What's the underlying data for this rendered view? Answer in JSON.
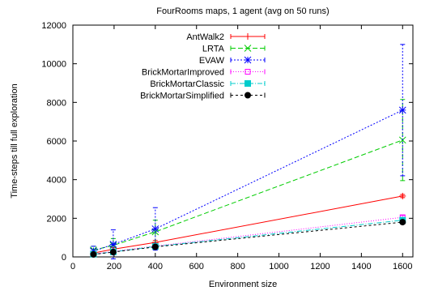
{
  "chart_data": {
    "type": "line",
    "title": "FourRooms maps, 1 agent (avg on 50 runs)",
    "xlabel": "Environment size",
    "ylabel": "Time-steps till full exploration",
    "xlim": [
      0,
      1650
    ],
    "ylim": [
      0,
      12000
    ],
    "xticks": [
      0,
      200,
      400,
      600,
      800,
      1000,
      1200,
      1400,
      1600
    ],
    "yticks": [
      0,
      2000,
      4000,
      6000,
      8000,
      10000,
      12000
    ],
    "grid": false,
    "legend_position": "top-center",
    "series": [
      {
        "name": "AntWalk2",
        "color": "#ff0000",
        "dash": "",
        "marker": "plus",
        "x": [
          100,
          196,
          400,
          1600
        ],
        "y": [
          200,
          400,
          750,
          3150
        ],
        "err": [
          60,
          80,
          100,
          80
        ]
      },
      {
        "name": "LRTA",
        "color": "#00cc00",
        "dash": "6,3",
        "marker": "cross",
        "x": [
          100,
          196,
          400,
          1600
        ],
        "y": [
          350,
          600,
          1300,
          6050
        ],
        "err": [
          200,
          350,
          600,
          2100
        ]
      },
      {
        "name": "EVAW",
        "color": "#0000ff",
        "dash": "2,2",
        "marker": "star",
        "x": [
          100,
          196,
          400,
          1600
        ],
        "y": [
          300,
          650,
          1450,
          7600
        ],
        "err": [
          250,
          750,
          1100,
          3400
        ]
      },
      {
        "name": "BrickMortarImproved",
        "color": "#ff00ff",
        "dash": "1,2",
        "marker": "square-open",
        "x": [
          100,
          196,
          400,
          1600
        ],
        "y": [
          150,
          280,
          560,
          2050
        ],
        "err": [
          30,
          40,
          60,
          100
        ]
      },
      {
        "name": "BrickMortarClassic",
        "color": "#00cccc",
        "dash": "6,2,1,2",
        "marker": "square-filled",
        "x": [
          100,
          196,
          400,
          1600
        ],
        "y": [
          140,
          260,
          540,
          1900
        ],
        "err": [
          30,
          40,
          60,
          100
        ]
      },
      {
        "name": "BrickMortarSimplified",
        "color": "#000000",
        "dash": "3,3",
        "marker": "circle-filled",
        "x": [
          100,
          196,
          400,
          1600
        ],
        "y": [
          130,
          250,
          520,
          1800
        ],
        "err": [
          30,
          40,
          60,
          100
        ]
      }
    ]
  }
}
